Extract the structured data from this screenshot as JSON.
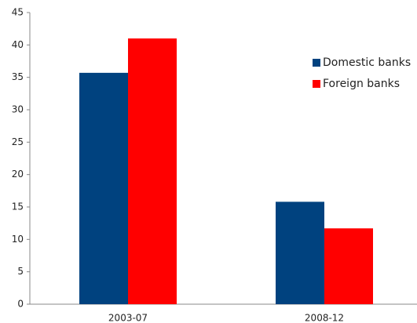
{
  "chart_data": {
    "type": "bar",
    "categories": [
      "2003-07",
      "2008-12"
    ],
    "series": [
      {
        "name": "Domestic banks",
        "color": "#00427f",
        "values": [
          35.7,
          15.8
        ]
      },
      {
        "name": "Foreign banks",
        "color": "#ff0000",
        "values": [
          41,
          11.7
        ]
      }
    ],
    "ylim": [
      0,
      45
    ],
    "yticks": [
      0,
      5,
      10,
      15,
      20,
      25,
      30,
      35,
      40,
      45
    ],
    "grid": false,
    "legend": "right"
  }
}
